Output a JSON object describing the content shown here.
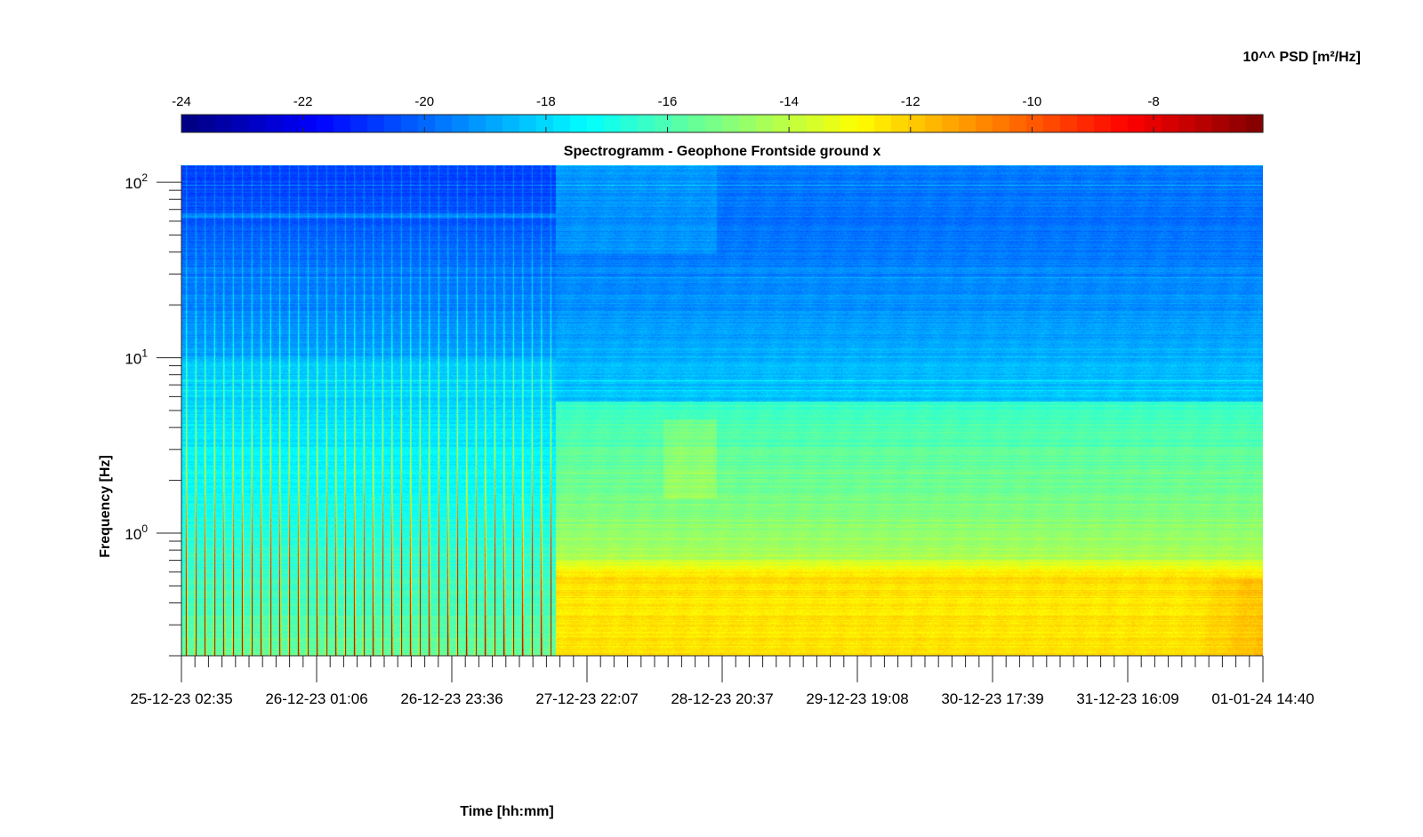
{
  "chart_data": {
    "type": "heatmap",
    "title": "Spectrogramm - Geophone Frontside ground x",
    "xlabel": "Time [hh:mm]",
    "ylabel": "Frequency [Hz]",
    "yscale": "log",
    "ylim": [
      0.2,
      125
    ],
    "y_ticks": [
      {
        "value": 1,
        "base": "10",
        "exp": "0"
      },
      {
        "value": 10,
        "base": "10",
        "exp": "1"
      },
      {
        "value": 100,
        "base": "10",
        "exp": "2"
      }
    ],
    "x_ticks": [
      "25-12-23 02:35",
      "26-12-23 01:06",
      "26-12-23 23:36",
      "27-12-23 22:07",
      "28-12-23 20:37",
      "29-12-23 19:08",
      "30-12-23 17:39",
      "31-12-23 16:09",
      "01-01-24 14:40"
    ],
    "colorbar": {
      "label": "10^^ PSD [m²/Hz]",
      "ticks": [
        "-24",
        "-22",
        "-20",
        "-18",
        "-16",
        "-14",
        "-12",
        "-10",
        "-8"
      ],
      "range": [
        -24,
        -6.2
      ],
      "colormap": "jet",
      "location": "top"
    },
    "grid": false,
    "regions": [
      {
        "time_span": [
          "25-12-23 02:35",
          "27-12-23 22:07"
        ],
        "pattern": "periodic vertical streaks (repeated events)"
      },
      {
        "time_span": [
          "27-12-23 22:07",
          "01-01-24 14:40"
        ],
        "pattern": "continuous background, highest PSD below about 0.5 Hz"
      }
    ]
  },
  "colors": {
    "jet_start": "#00008F",
    "jet_end": "#800000"
  }
}
